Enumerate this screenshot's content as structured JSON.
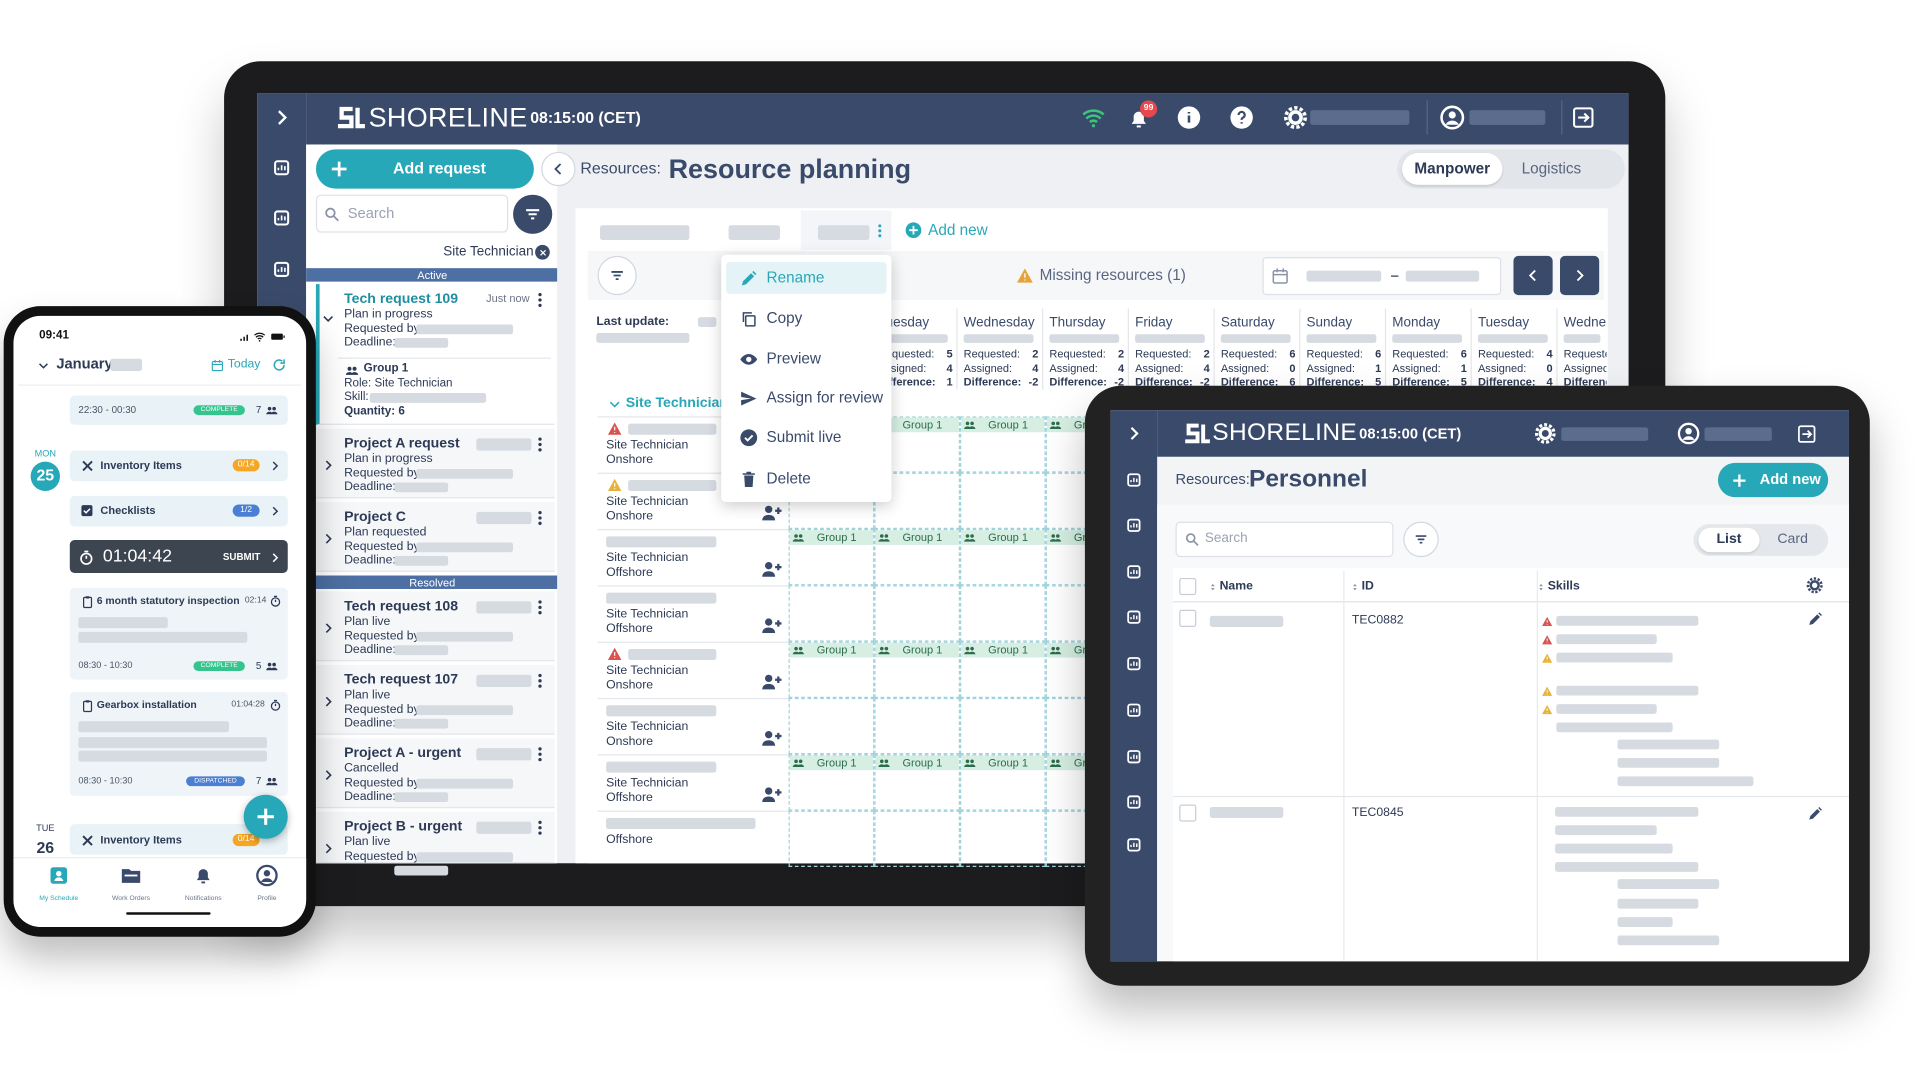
{
  "laptop": {
    "header": {
      "brand": "SHORELINE",
      "time": "08:15:00 (CET)",
      "notification_count": "99"
    },
    "sidebar": {
      "add_request": "Add request",
      "search_placeholder": "Search",
      "filter_chip": "Site Technician",
      "sections": [
        "Active",
        "Resolved"
      ],
      "requests": [
        {
          "title": "Tech request 109",
          "timestamp": "Just now",
          "status": "Plan in progress",
          "requested_by": "Requested by:",
          "deadline": "Deadline:",
          "details": [
            "Group 1",
            "Role: Site Technician",
            "Skill:",
            "Quantity: 6"
          ]
        },
        {
          "title": "Project A request",
          "status": "Plan in progress",
          "requested_by": "Requested by:",
          "deadline": "Deadline:"
        },
        {
          "title": "Project C",
          "status": "Plan requested",
          "requested_by": "Requested by:",
          "deadline": "Deadline:"
        },
        {
          "title": "Tech request 108",
          "status": "Plan live",
          "requested_by": "Requested by:",
          "deadline": "Deadline:"
        },
        {
          "title": "Tech request 107",
          "status": "Plan live",
          "requested_by": "Requested by:",
          "deadline": "Deadline:"
        },
        {
          "title": "Project A - urgent",
          "status": "Cancelled",
          "requested_by": "Requested by:",
          "deadline": "Deadline:"
        },
        {
          "title": "Project B - urgent",
          "status": "Plan live",
          "requested_by": "Requested by:"
        }
      ]
    },
    "page": {
      "breadcrumb": "Resources:",
      "title": "Resource planning",
      "tabs": [
        "Manpower",
        "Logistics"
      ],
      "add_new": "Add new",
      "missing_resources": "Missing resources (1)",
      "last_update": "Last update:",
      "context_menu": [
        "Rename",
        "Copy",
        "Preview",
        "Assign for review",
        "Submit live",
        "Delete"
      ],
      "stat_labels": [
        "Requested:",
        "Assigned:",
        "Difference:"
      ],
      "days": [
        {
          "name": "Tuesday",
          "requested": 5,
          "assigned": 4,
          "difference": 1
        },
        {
          "name": "Wednesday",
          "requested": 2,
          "assigned": 4,
          "difference": -2
        },
        {
          "name": "Thursday",
          "requested": 2,
          "assigned": 4,
          "difference": -2
        },
        {
          "name": "Friday",
          "requested": 2,
          "assigned": 4,
          "difference": -2
        },
        {
          "name": "Saturday",
          "requested": 6,
          "assigned": 0,
          "difference": 6
        },
        {
          "name": "Sunday",
          "requested": 6,
          "assigned": 1,
          "difference": 5
        },
        {
          "name": "Monday",
          "requested": 6,
          "assigned": 1,
          "difference": 5
        },
        {
          "name": "Tuesday",
          "requested": 4,
          "assigned": 0,
          "difference": 4
        },
        {
          "name": "Wednesday"
        }
      ],
      "group": "Site Technician",
      "rows": [
        {
          "role": "Site Technician",
          "location": "Onshore"
        },
        {
          "role": "Site Technician",
          "location": "Onshore"
        },
        {
          "role": "Site Technician",
          "location": "Offshore"
        },
        {
          "role": "Site Technician",
          "location": "Offshore"
        },
        {
          "role": "Site Technician",
          "location": "Onshore"
        },
        {
          "role": "Site Technician",
          "location": "Onshore"
        },
        {
          "role": "Site Technician",
          "location": "Offshore"
        },
        {
          "location": "Offshore"
        }
      ],
      "assignment_label": "Group 1"
    }
  },
  "tablet": {
    "header": {
      "brand": "SHORELINE",
      "time": "08:15:00 (CET)"
    },
    "page": {
      "breadcrumb": "Resources:",
      "title": "Personnel",
      "add_new": "Add new",
      "search_placeholder": "Search",
      "views": [
        "List",
        "Card"
      ],
      "columns": [
        "Name",
        "ID",
        "Skills"
      ],
      "rows": [
        {
          "id": "TEC0882"
        },
        {
          "id": "TEC0845"
        }
      ]
    }
  },
  "phone": {
    "status_time": "09:41",
    "month": "January",
    "today": "Today",
    "days": [
      {
        "weekday": "MON",
        "date": "25"
      },
      {
        "weekday": "TUE",
        "date": "26"
      }
    ],
    "items": [
      {
        "time": "22:30 - 00:30",
        "status": "COMPLETE",
        "crew": "7"
      },
      {
        "title": "Inventory Items",
        "progress": "0/14"
      },
      {
        "title": "Checklists",
        "progress": "1/2"
      },
      {
        "timer": "01:04:42",
        "action": "SUBMIT"
      },
      {
        "title": "6 month statutory inspection",
        "duration": "02:14",
        "time": "08:30 - 10:30",
        "status": "COMPLETE",
        "crew": "5"
      },
      {
        "title": "Gearbox installation",
        "duration": "01:04:28",
        "time": "08:30 - 10:30",
        "status": "DISPATCHED",
        "crew": "7"
      },
      {
        "title": "Inventory Items",
        "progress": "0/14"
      }
    ],
    "nav": [
      "My Schedule",
      "Work Orders",
      "Notifications",
      "Profile"
    ]
  }
}
